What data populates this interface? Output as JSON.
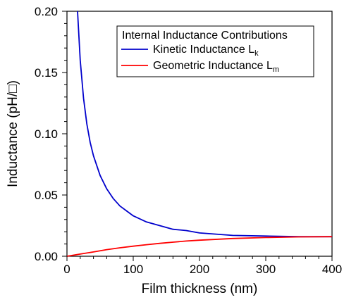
{
  "chart_data": {
    "type": "line",
    "title": "",
    "xlabel": "Film thickness (nm)",
    "ylabel": "Inductance (pH/□)",
    "xlim": [
      0,
      400
    ],
    "ylim": [
      0,
      0.2
    ],
    "x_ticks": [
      0,
      100,
      200,
      300,
      400
    ],
    "x_tick_labels": [
      "0",
      "100",
      "200",
      "300",
      "400"
    ],
    "y_ticks": [
      0,
      0.05,
      0.1,
      0.15,
      0.2
    ],
    "y_tick_labels": [
      "0.00",
      "0.05",
      "0.10",
      "0.15",
      "0.20"
    ],
    "x_minor_step": 20,
    "y_minor_step": 0.01,
    "grid": false,
    "legend": {
      "title": "Internal Inductance Contributions",
      "placement": "top-right"
    },
    "series": [
      {
        "name": "Kinetic Inductance",
        "name_sub": "k",
        "label_prefix": "L",
        "color": "#0000cc",
        "x": [
          16,
          20,
          25,
          30,
          35,
          40,
          50,
          60,
          70,
          80,
          90,
          100,
          120,
          140,
          160,
          180,
          200,
          250,
          300,
          350,
          400
        ],
        "y": [
          0.2,
          0.16,
          0.129,
          0.108,
          0.093,
          0.082,
          0.066,
          0.055,
          0.047,
          0.041,
          0.037,
          0.033,
          0.028,
          0.025,
          0.022,
          0.021,
          0.019,
          0.017,
          0.0165,
          0.016,
          0.016
        ]
      },
      {
        "name": "Geometric Inductance",
        "name_sub": "m",
        "label_prefix": "L",
        "color": "#ff0000",
        "x": [
          0,
          20,
          40,
          60,
          80,
          100,
          120,
          140,
          160,
          180,
          200,
          250,
          300,
          350,
          400
        ],
        "y": [
          0,
          0.0018,
          0.0035,
          0.0054,
          0.0069,
          0.0082,
          0.0094,
          0.0105,
          0.0115,
          0.0124,
          0.0131,
          0.0145,
          0.0153,
          0.0158,
          0.016
        ]
      }
    ]
  }
}
